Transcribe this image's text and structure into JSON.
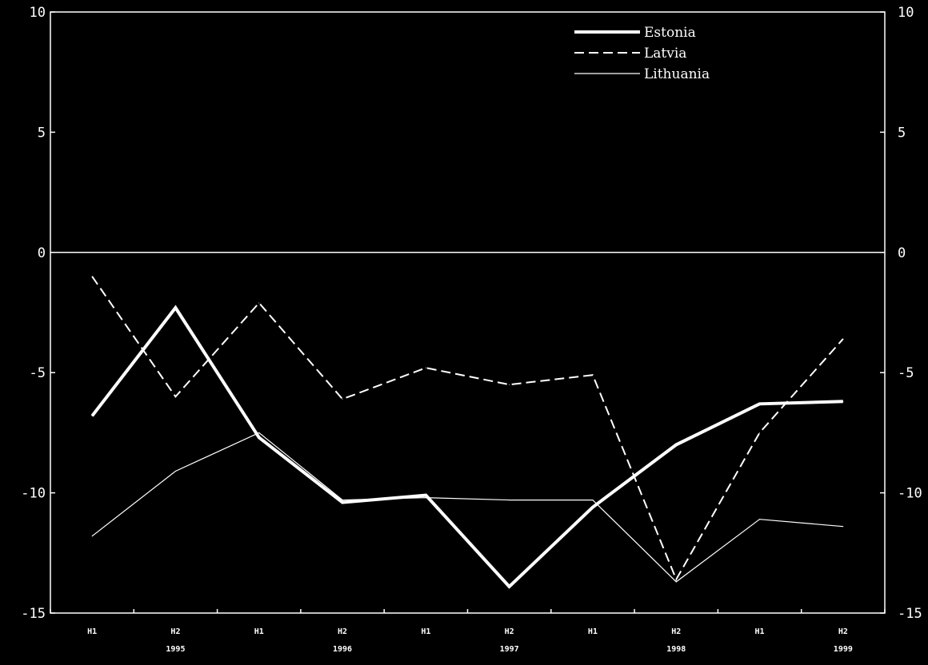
{
  "chart_data": {
    "type": "line",
    "categories": [
      "H1",
      "H2",
      "H1",
      "H2",
      "H1",
      "H2",
      "H1",
      "H2",
      "H1",
      "H2"
    ],
    "year_labels": [
      "1995",
      "1996",
      "1997",
      "1998",
      "1999"
    ],
    "ylim": [
      -15,
      10
    ],
    "yticks": [
      10,
      5,
      0,
      -5,
      -10,
      -15
    ],
    "ytick_labels": [
      "10",
      "5",
      "0",
      "-5",
      "-10",
      "-15"
    ],
    "title": "",
    "xlabel": "",
    "ylabel": "",
    "legend_position": "top-right",
    "zero_line": true,
    "series": [
      {
        "name": "Estonia",
        "style": "thick-solid",
        "values": [
          -6.8,
          -2.3,
          -7.7,
          -10.4,
          -10.1,
          -13.9,
          -10.6,
          -8.0,
          -6.3,
          -6.2
        ]
      },
      {
        "name": "Latvia",
        "style": "dashed",
        "values": [
          -1.0,
          -6.0,
          -2.1,
          -6.1,
          -4.8,
          -5.5,
          -5.1,
          -13.6,
          -7.5,
          -3.6
        ]
      },
      {
        "name": "Lithuania",
        "style": "thin-solid",
        "values": [
          -11.8,
          -9.1,
          -7.5,
          -10.3,
          -10.2,
          -10.3,
          -10.3,
          -13.7,
          -11.1,
          -11.4
        ]
      }
    ],
    "colors": {
      "background": "#000000",
      "foreground": "#ffffff"
    }
  }
}
